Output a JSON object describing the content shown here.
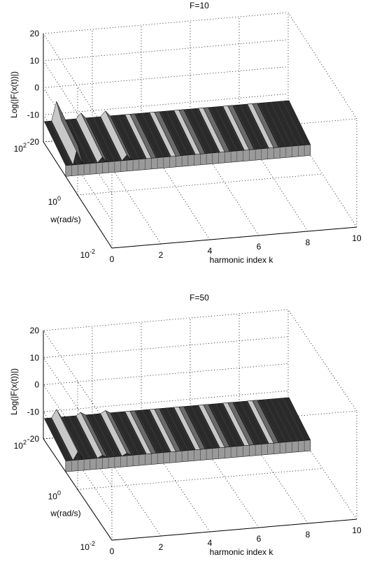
{
  "chart_data": [
    {
      "type": "surface",
      "title": "F=10",
      "xlabel": "harmonic index k",
      "ylabel": "w(rad/s)",
      "zlabel": "Log(|F(x(t))|)",
      "x_ticks": [
        "0",
        "2",
        "4",
        "6",
        "8",
        "10"
      ],
      "y_ticks": [
        {
          "base": "10",
          "exp": "-2"
        },
        {
          "base": "10",
          "exp": "0"
        },
        {
          "base": "10",
          "exp": "2"
        }
      ],
      "z_ticks": [
        "-20",
        "-10",
        "0",
        "10",
        "20"
      ],
      "xlim": [
        0,
        10
      ],
      "ylim_log10": [
        -2,
        2
      ],
      "zlim": [
        -20,
        20
      ],
      "grid": true,
      "surface_level": -12,
      "edge_drop": -20,
      "peaks": [
        {
          "k": 0.5,
          "z": -5
        },
        {
          "k": 1.5,
          "z": -10
        },
        {
          "k": 2.5,
          "z": -10
        },
        {
          "k": 3.5,
          "z": -12
        },
        {
          "k": 4.5,
          "z": -12
        },
        {
          "k": 5.5,
          "z": -12
        },
        {
          "k": 6.5,
          "z": -12
        },
        {
          "k": 7.5,
          "z": -12
        },
        {
          "k": 8.5,
          "z": -12
        }
      ]
    },
    {
      "type": "surface",
      "title": "F=50",
      "xlabel": "harmonic index k",
      "ylabel": "w(rad/s)",
      "zlabel": "Log(|F(x(t))|)",
      "x_ticks": [
        "0",
        "2",
        "4",
        "6",
        "8",
        "10"
      ],
      "y_ticks": [
        {
          "base": "10",
          "exp": "-2"
        },
        {
          "base": "10",
          "exp": "0"
        },
        {
          "base": "10",
          "exp": "2"
        }
      ],
      "z_ticks": [
        "-20",
        "-10",
        "0",
        "10",
        "20"
      ],
      "xlim": [
        0,
        10
      ],
      "ylim_log10": [
        -2,
        2
      ],
      "zlim": [
        -20,
        20
      ],
      "grid": true,
      "surface_level": -12,
      "edge_drop": -20,
      "peaks": [
        {
          "k": 0.5,
          "z": -9
        },
        {
          "k": 1.5,
          "z": -11
        },
        {
          "k": 2.5,
          "z": -11
        },
        {
          "k": 3.5,
          "z": -12
        },
        {
          "k": 4.5,
          "z": -12
        },
        {
          "k": 5.5,
          "z": -12
        },
        {
          "k": 6.5,
          "z": -12
        },
        {
          "k": 7.5,
          "z": -12
        },
        {
          "k": 8.5,
          "z": -12
        }
      ]
    }
  ]
}
